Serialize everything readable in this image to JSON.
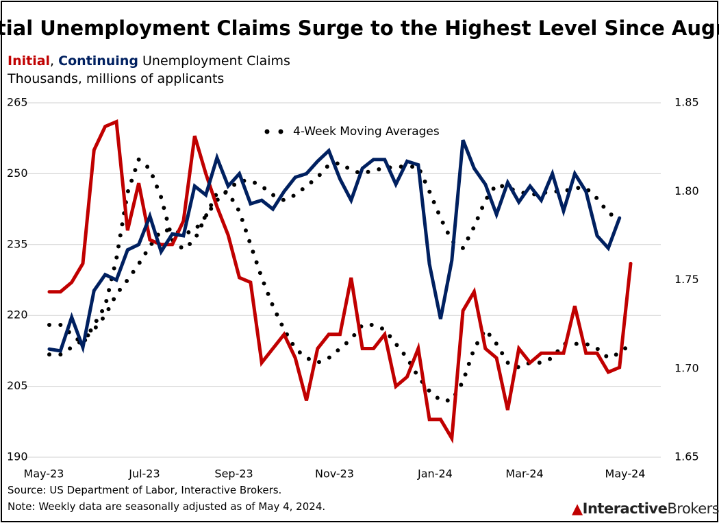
{
  "chart_data": {
    "type": "line",
    "title": "Initial Unemployment Claims Surge to the Highest Level Since August",
    "subtitle_joiner": ",",
    "subtitle_suffix": "Unemployment Claims",
    "units": "Thousands, millions of applicants",
    "annotation": "4-Week Moving Averages",
    "source": "Source: US Department of Labor, Interactive Brokers.",
    "note": "Note: Weekly data are seasonally adjusted as of May 4, 2024.",
    "logo": [
      "Interactive",
      "Brokers"
    ],
    "categories": [
      "May-23",
      null,
      null,
      null,
      null,
      null,
      null,
      null,
      null,
      "Jul-23",
      null,
      null,
      null,
      null,
      null,
      null,
      null,
      "Sep-23",
      null,
      null,
      null,
      null,
      null,
      null,
      null,
      null,
      "Nov-23",
      null,
      null,
      null,
      null,
      null,
      null,
      null,
      null,
      "Jan-24",
      null,
      null,
      null,
      null,
      null,
      null,
      null,
      "Mar-24",
      null,
      null,
      null,
      null,
      null,
      null,
      null,
      null,
      "May-24"
    ],
    "ylim": [
      190,
      265
    ],
    "yticks": [
      190,
      205,
      220,
      235,
      250,
      265
    ],
    "y2lim": [
      1.65,
      1.85
    ],
    "y2ticks": [
      1.65,
      {
        "value": 1.7,
        "label": "1.70"
      },
      1.75,
      {
        "value": 1.8,
        "label": "1.80"
      },
      1.85
    ],
    "grid": true,
    "series": [
      {
        "name": "Initial",
        "color": "#c00000",
        "style": "solid",
        "values": [
          225,
          225,
          227,
          231,
          255,
          260,
          261,
          238,
          248,
          236,
          235,
          235,
          240,
          258,
          250,
          243,
          237,
          228,
          227,
          210,
          213,
          216,
          211,
          202,
          213,
          216,
          216,
          228,
          213,
          213,
          216,
          205,
          207,
          213,
          198,
          198,
          194,
          221,
          225,
          213,
          211,
          200,
          213,
          210,
          212,
          212,
          212,
          222,
          212,
          212,
          208,
          209,
          231
        ]
      },
      {
        "name": "Continuing",
        "color": "#002060",
        "style": "solid",
        "axis": "y2",
        "values": [
          1.711,
          1.71,
          1.729,
          1.712,
          1.744,
          1.753,
          1.75,
          1.767,
          1.77,
          1.786,
          1.766,
          1.776,
          1.775,
          1.803,
          1.798,
          1.819,
          1.803,
          1.81,
          1.793,
          1.795,
          1.79,
          1.8,
          1.808,
          1.81,
          1.817,
          1.823,
          1.807,
          1.795,
          1.813,
          1.818,
          1.818,
          1.804,
          1.817,
          1.815,
          1.759,
          1.728,
          1.761,
          1.829,
          1.813,
          1.804,
          1.787,
          1.805,
          1.794,
          1.803,
          1.795,
          1.81,
          1.789,
          1.81,
          1.8,
          1.775,
          1.768,
          1.785,
          null
        ]
      },
      {
        "color": "#000000",
        "style": "dotted",
        "values": [
          218,
          218,
          216,
          214,
          218,
          222,
          232,
          246,
          253,
          251,
          245,
          236,
          234,
          236,
          241,
          246,
          246,
          242,
          235,
          228,
          222,
          217,
          213,
          211,
          210,
          211,
          213,
          215,
          218,
          218,
          217,
          214,
          211,
          207,
          204,
          202,
          202,
          206,
          213,
          217,
          214,
          210,
          209,
          210,
          210,
          211,
          214,
          214,
          214,
          213,
          211,
          212,
          214
        ]
      },
      {
        "color": "#000000",
        "style": "dotted",
        "axis": "y2",
        "values": [
          1.708,
          1.708,
          1.712,
          1.716,
          1.722,
          1.73,
          1.742,
          1.75,
          1.759,
          1.769,
          1.778,
          1.778,
          1.776,
          1.778,
          1.786,
          1.795,
          1.801,
          1.806,
          1.806,
          1.803,
          1.798,
          1.795,
          1.798,
          1.803,
          1.808,
          1.815,
          1.816,
          1.812,
          1.81,
          1.812,
          1.813,
          1.814,
          1.814,
          1.814,
          1.8,
          1.785,
          1.772,
          1.768,
          1.78,
          1.795,
          1.804,
          1.802,
          1.8,
          1.798,
          1.799,
          1.8,
          1.8,
          1.802,
          1.802,
          1.796,
          1.788,
          1.784,
          null
        ]
      }
    ]
  }
}
